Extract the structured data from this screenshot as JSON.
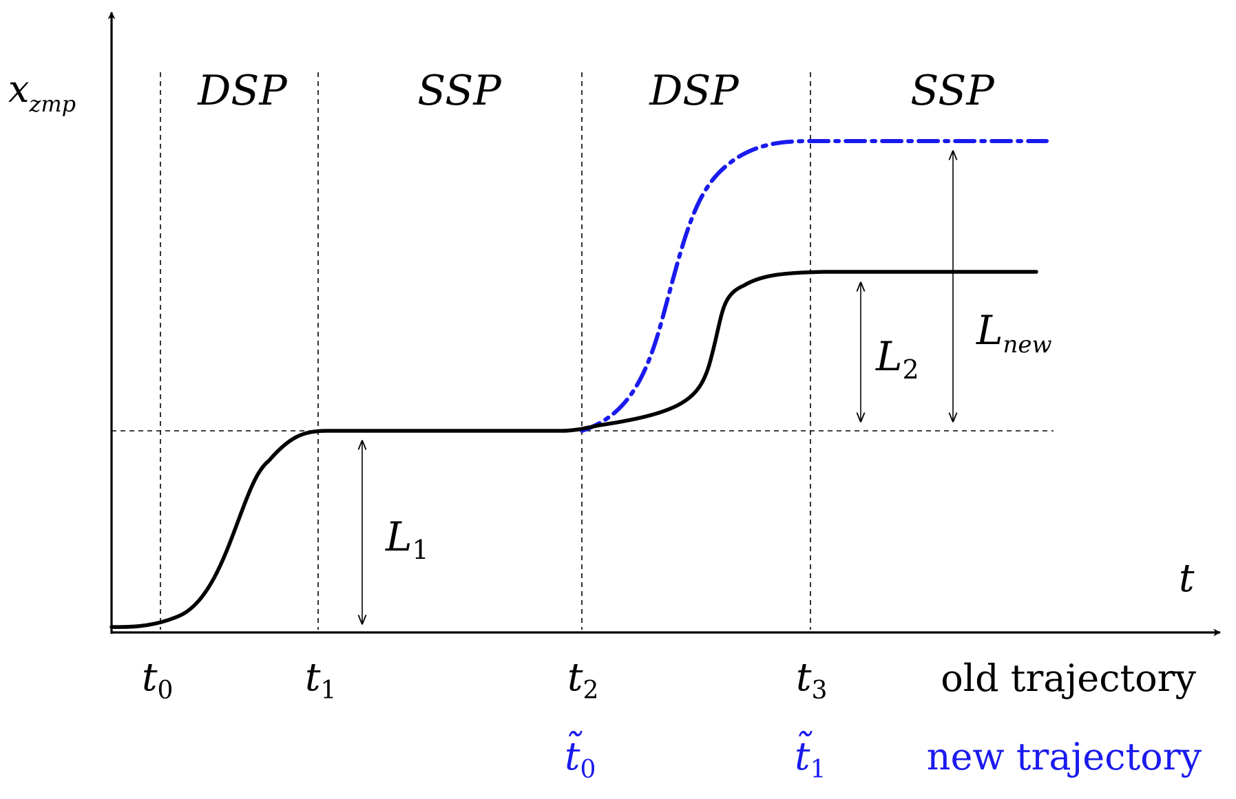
{
  "colors": {
    "old": "#000000",
    "new": "#1a1aee",
    "guide": "#000000"
  },
  "axes": {
    "y_symbol": "x",
    "y_subscript": "zmp",
    "x_symbol": "t"
  },
  "phases": [
    "DSP",
    "SSP",
    "DSP",
    "SSP"
  ],
  "old_ticks": [
    {
      "symbol": "t",
      "subscript": "0"
    },
    {
      "symbol": "t",
      "subscript": "1"
    },
    {
      "symbol": "t",
      "subscript": "2"
    },
    {
      "symbol": "t",
      "subscript": "3"
    }
  ],
  "new_ticks": [
    {
      "symbol": "t̃",
      "subscript": "0"
    },
    {
      "symbol": "t̃",
      "subscript": "1"
    }
  ],
  "legend": {
    "old": "old trajectory",
    "new": "new trajectory"
  },
  "lengths": {
    "L1": {
      "symbol": "L",
      "subscript": "1"
    },
    "L2": {
      "symbol": "L",
      "subscript": "2"
    },
    "Lnew": {
      "symbol": "L",
      "subscript": "new"
    }
  }
}
